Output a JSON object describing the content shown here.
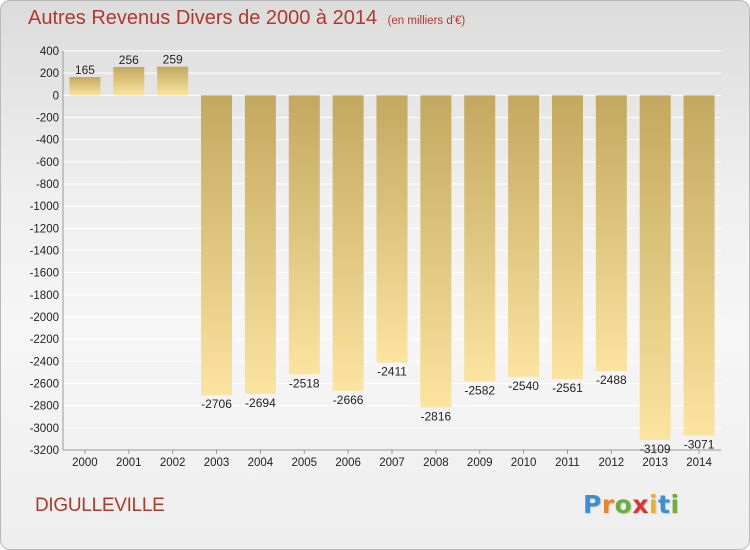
{
  "header": {
    "title": "Autres Revenus Divers de 2000 à 2014",
    "subtitle": "(en milliers d'€)"
  },
  "footer": {
    "commune": "DIGULLEVILLE"
  },
  "logo": {
    "text": "Proxiti",
    "letters": [
      {
        "char": "P",
        "color": "#3a8fd0"
      },
      {
        "char": "r",
        "color": "#e6862a"
      },
      {
        "char": "o",
        "color": "#6aae3c"
      },
      {
        "char": "x",
        "color": "#d9362c"
      },
      {
        "char": "i",
        "color": "#e6b12a"
      },
      {
        "char": "t",
        "color": "#3a8fd0"
      },
      {
        "char": "i",
        "color": "#6aae3c"
      }
    ]
  },
  "colors": {
    "bar_top": "#c3a85f",
    "bar_bottom": "#fbe4a0",
    "grid": "#ffffff",
    "axis_text": "#222222"
  },
  "chart_data": {
    "type": "bar",
    "title": "Autres Revenus Divers de 2000 à 2014",
    "subtitle": "(en milliers d'€)",
    "categories": [
      "2000",
      "2001",
      "2002",
      "2003",
      "2004",
      "2005",
      "2006",
      "2007",
      "2008",
      "2009",
      "2010",
      "2011",
      "2012",
      "2013",
      "2014"
    ],
    "values": [
      165,
      256,
      259,
      -2706,
      -2694,
      -2518,
      -2666,
      -2411,
      -2816,
      -2582,
      -2540,
      -2561,
      -2488,
      -3109,
      -3071
    ],
    "ylim": [
      -3200,
      400
    ],
    "yticks": [
      400,
      200,
      0,
      -200,
      -400,
      -600,
      -800,
      -1000,
      -1200,
      -1400,
      -1600,
      -1800,
      -2000,
      -2200,
      -2400,
      -2600,
      -2800,
      -3000,
      -3200
    ],
    "grid": true,
    "legend": "none",
    "xlabel": "",
    "ylabel": ""
  }
}
